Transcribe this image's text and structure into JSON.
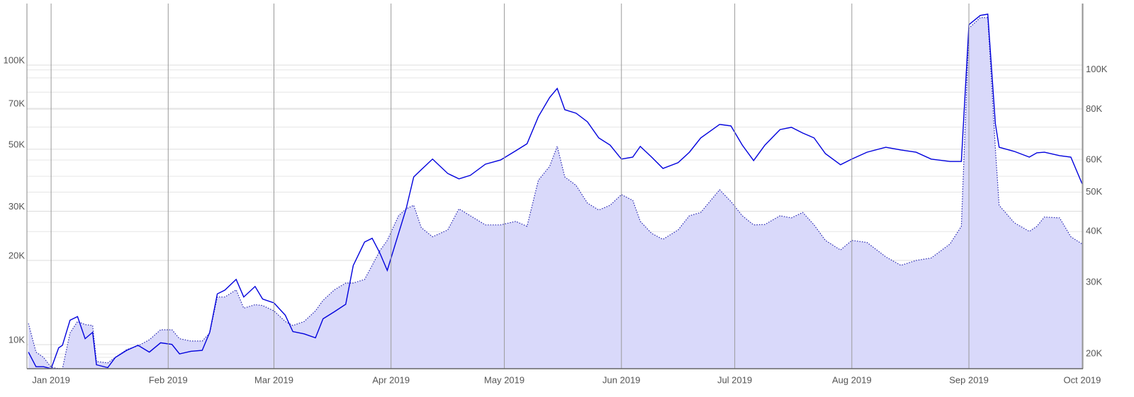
{
  "chart_data": {
    "type": "line",
    "x": [
      -6,
      -4,
      -2,
      0,
      2,
      3,
      5,
      7,
      9,
      11,
      12,
      15,
      17,
      20,
      23,
      26,
      29,
      32,
      34,
      37,
      40,
      42,
      44,
      46,
      49,
      51,
      54,
      56,
      59,
      62,
      64,
      67,
      70,
      72,
      75,
      78,
      80,
      83,
      85,
      87,
      89,
      92,
      94,
      96,
      98,
      101,
      105,
      108,
      111,
      115,
      119,
      123,
      126,
      129,
      132,
      134,
      136,
      139,
      142,
      145,
      148,
      151,
      154,
      156,
      159,
      162,
      166,
      169,
      172,
      177,
      180,
      183,
      186,
      189,
      193,
      196,
      199,
      202,
      205,
      209,
      212,
      216,
      221,
      225,
      229,
      233,
      238,
      241,
      243,
      246,
      248,
      250,
      251,
      255,
      259,
      261,
      263,
      267,
      270,
      273
    ],
    "series": [
      {
        "kind": "area",
        "color": "#2626b0",
        "fill": "#d9d9fa",
        "axis": "y",
        "values": [
          11900,
          9400,
          9000,
          8300,
          8200,
          8200,
          11000,
          12100,
          11800,
          11700,
          8700,
          8600,
          9000,
          9600,
          9900,
          10400,
          11300,
          11300,
          10500,
          10300,
          10300,
          11000,
          14800,
          14800,
          15700,
          13500,
          13900,
          13800,
          13200,
          12100,
          11700,
          12100,
          13200,
          14400,
          15700,
          16600,
          16600,
          17100,
          19200,
          21600,
          23600,
          28900,
          30600,
          31500,
          26200,
          24300,
          25700,
          30600,
          28900,
          26800,
          26800,
          27600,
          26500,
          38700,
          43400,
          51200,
          39800,
          37100,
          32100,
          30300,
          31500,
          34400,
          32800,
          27600,
          25000,
          23800,
          25700,
          28900,
          29700,
          35800,
          32500,
          28900,
          26800,
          26900,
          28900,
          28400,
          29700,
          26800,
          23600,
          21800,
          23600,
          23200,
          20600,
          19200,
          20000,
          20400,
          22900,
          26500,
          135400,
          147800,
          147800,
          50300,
          31500,
          27300,
          25400,
          26500,
          28600,
          28400,
          24300,
          22900
        ]
      },
      {
        "kind": "line",
        "color": "#0000dd",
        "axis": "y2",
        "values": [
          20200,
          18600,
          18600,
          18400,
          20700,
          21000,
          24200,
          24700,
          21800,
          22600,
          18800,
          18500,
          19600,
          20400,
          21000,
          20200,
          21300,
          21100,
          20000,
          20300,
          20400,
          22600,
          28100,
          28700,
          30500,
          27600,
          29300,
          27300,
          26700,
          24900,
          22700,
          22400,
          21900,
          24400,
          25400,
          26500,
          33000,
          37700,
          38500,
          35500,
          32100,
          39600,
          45500,
          54500,
          56800,
          60300,
          55600,
          53900,
          55000,
          58600,
          60000,
          63200,
          65800,
          76700,
          85500,
          90000,
          79800,
          78200,
          74500,
          68000,
          65300,
          60300,
          61000,
          64800,
          61000,
          57200,
          59100,
          62700,
          68000,
          73400,
          72800,
          65300,
          59800,
          65300,
          71300,
          72200,
          69900,
          68000,
          62200,
          58400,
          60300,
          62700,
          64500,
          63500,
          62700,
          60300,
          59500,
          59500,
          129200,
          136100,
          137100,
          73700,
          64500,
          63000,
          61000,
          62500,
          62700,
          61500,
          61000,
          52400
        ]
      }
    ],
    "xlim": [
      -6.4,
      273.2
    ],
    "xticks": [
      {
        "value": 0,
        "label": "Jan 2019"
      },
      {
        "value": 31,
        "label": "Feb 2019"
      },
      {
        "value": 59,
        "label": "Mar 2019"
      },
      {
        "value": 90,
        "label": "Apr 2019"
      },
      {
        "value": 120,
        "label": "May 2019"
      },
      {
        "value": 151,
        "label": "Jun 2019"
      },
      {
        "value": 181,
        "label": "Jul 2019"
      },
      {
        "value": 212,
        "label": "Aug 2019"
      },
      {
        "value": 243,
        "label": "Sep 2019"
      },
      {
        "value": 273,
        "label": "Oct 2019"
      }
    ],
    "ylim": [
      8200,
      166000
    ],
    "yticks": [
      {
        "value": 10000,
        "label": "10K"
      },
      {
        "value": 20000,
        "label": "20K"
      },
      {
        "value": 30000,
        "label": "30K"
      },
      {
        "value": 50000,
        "label": "50K"
      },
      {
        "value": 70000,
        "label": "70K"
      },
      {
        "value": 100000,
        "label": "100K"
      }
    ],
    "yminorticks": [
      9000,
      40000,
      60000,
      80000,
      90000
    ],
    "y2lim": [
      18390,
      145600
    ],
    "y2ticks": [
      {
        "value": 20000,
        "label": "20K"
      },
      {
        "value": 30000,
        "label": "30K"
      },
      {
        "value": 40000,
        "label": "40K"
      },
      {
        "value": 50000,
        "label": "50K"
      },
      {
        "value": 60000,
        "label": "60K"
      },
      {
        "value": 80000,
        "label": "80K"
      },
      {
        "value": 100000,
        "label": "100K"
      }
    ],
    "log_scale": true,
    "grid": true
  }
}
